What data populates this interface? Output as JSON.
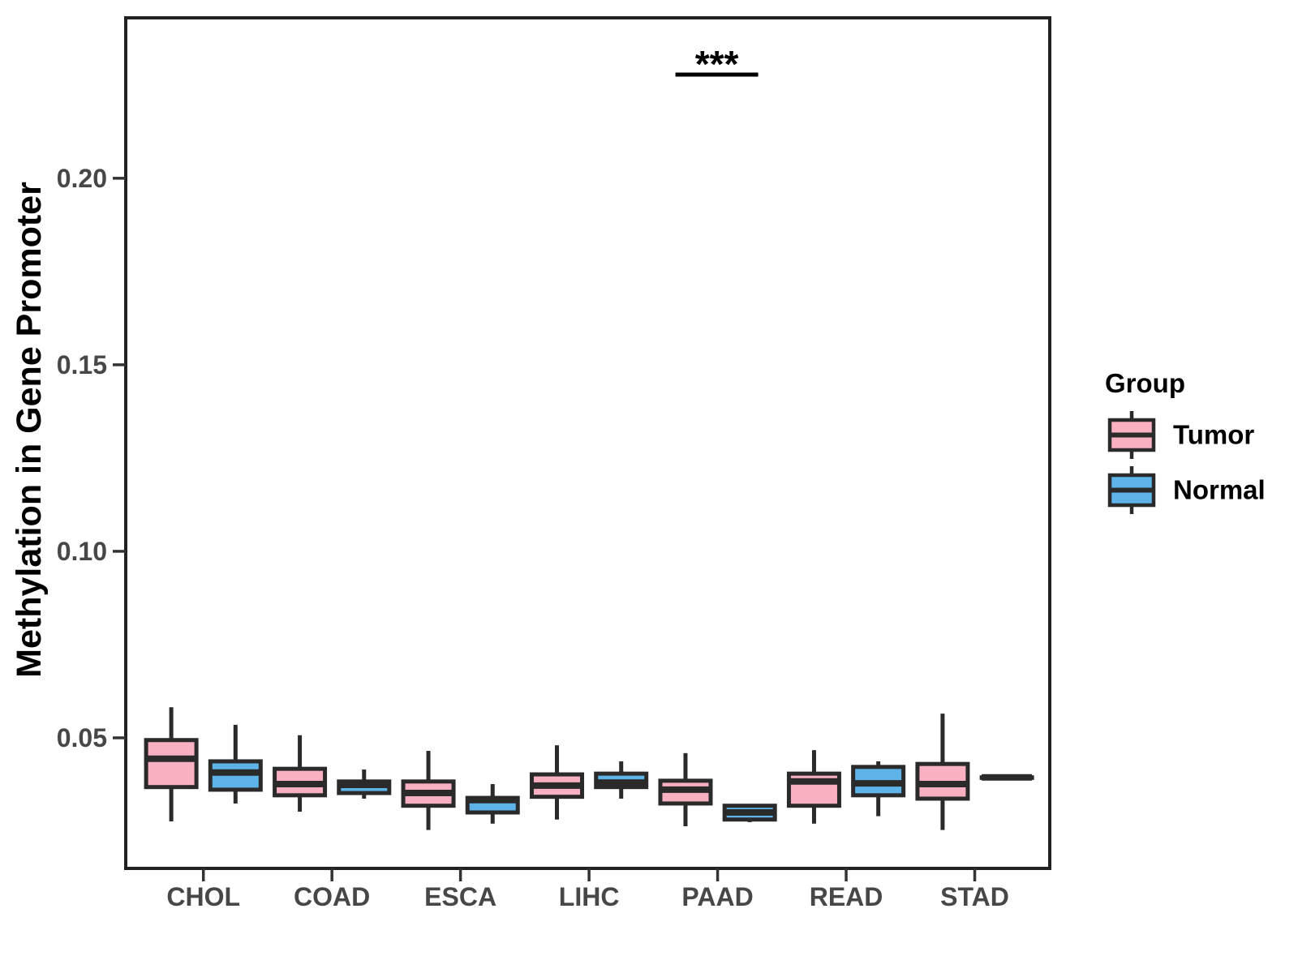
{
  "figure": {
    "background": "#FFFFFF",
    "panel_border_color": "#222222",
    "box_stroke_color": "#2A2A2A",
    "axis_text_color": "#474747",
    "title_text_color": "#000000"
  },
  "chart_data": {
    "type": "boxplot",
    "title": "",
    "xlabel": "",
    "ylabel": "Methylation in Gene Promoter",
    "categories": [
      "CHOL",
      "COAD",
      "ESCA",
      "LIHC",
      "PAAD",
      "READ",
      "STAD"
    ],
    "y_ticks": [
      0.05,
      0.1,
      0.15,
      0.2
    ],
    "y_tick_labels": [
      "0.05",
      "0.10",
      "0.15",
      "0.20"
    ],
    "ylim": [
      0.015,
      0.243
    ],
    "grid": false,
    "legend": {
      "title": "Group",
      "position": "right",
      "entries": [
        {
          "name": "Tumor",
          "color": "#F9B1C1"
        },
        {
          "name": "Normal",
          "color": "#5EB3E9"
        }
      ]
    },
    "series": [
      {
        "name": "Tumor",
        "color": "#F9B1C1",
        "boxes": [
          {
            "category": "CHOL",
            "whisker_low": 0.0276,
            "q1": 0.0368,
            "median": 0.0444,
            "q3": 0.0494,
            "whisker_high": 0.0582
          },
          {
            "category": "COAD",
            "whisker_low": 0.0302,
            "q1": 0.0346,
            "median": 0.0376,
            "q3": 0.0417,
            "whisker_high": 0.0507
          },
          {
            "category": "ESCA",
            "whisker_low": 0.0253,
            "q1": 0.0318,
            "median": 0.0352,
            "q3": 0.0383,
            "whisker_high": 0.0465
          },
          {
            "category": "LIHC",
            "whisker_low": 0.0281,
            "q1": 0.0342,
            "median": 0.0372,
            "q3": 0.0402,
            "whisker_high": 0.048
          },
          {
            "category": "PAAD",
            "whisker_low": 0.0263,
            "q1": 0.0324,
            "median": 0.0361,
            "q3": 0.0385,
            "whisker_high": 0.0459
          },
          {
            "category": "READ",
            "whisker_low": 0.027,
            "q1": 0.0318,
            "median": 0.0383,
            "q3": 0.0404,
            "whisker_high": 0.0467
          },
          {
            "category": "STAD",
            "whisker_low": 0.0253,
            "q1": 0.0337,
            "median": 0.0376,
            "q3": 0.043,
            "whisker_high": 0.0565
          }
        ]
      },
      {
        "name": "Normal",
        "color": "#5EB3E9",
        "boxes": [
          {
            "category": "CHOL",
            "whisker_low": 0.0324,
            "q1": 0.0361,
            "median": 0.0407,
            "q3": 0.0437,
            "whisker_high": 0.0535
          },
          {
            "category": "COAD",
            "whisker_low": 0.0337,
            "q1": 0.0352,
            "median": 0.0374,
            "q3": 0.0383,
            "whisker_high": 0.0415
          },
          {
            "category": "ESCA",
            "whisker_low": 0.027,
            "q1": 0.03,
            "median": 0.0333,
            "q3": 0.0339,
            "whisker_high": 0.0376
          },
          {
            "category": "LIHC",
            "whisker_low": 0.0337,
            "q1": 0.0368,
            "median": 0.038,
            "q3": 0.0404,
            "whisker_high": 0.0437
          },
          {
            "category": "PAAD",
            "whisker_low": 0.0274,
            "q1": 0.0281,
            "median": 0.03,
            "q3": 0.0318,
            "whisker_high": 0.0318
          },
          {
            "category": "READ",
            "whisker_low": 0.029,
            "q1": 0.0346,
            "median": 0.0378,
            "q3": 0.0422,
            "whisker_high": 0.0437
          },
          {
            "category": "STAD",
            "whisker_low": 0.0394,
            "q1": 0.0394,
            "median": 0.0394,
            "q3": 0.0394,
            "whisker_high": 0.0394
          }
        ]
      }
    ],
    "significance": [
      {
        "category": "PAAD",
        "label": "***"
      }
    ]
  }
}
